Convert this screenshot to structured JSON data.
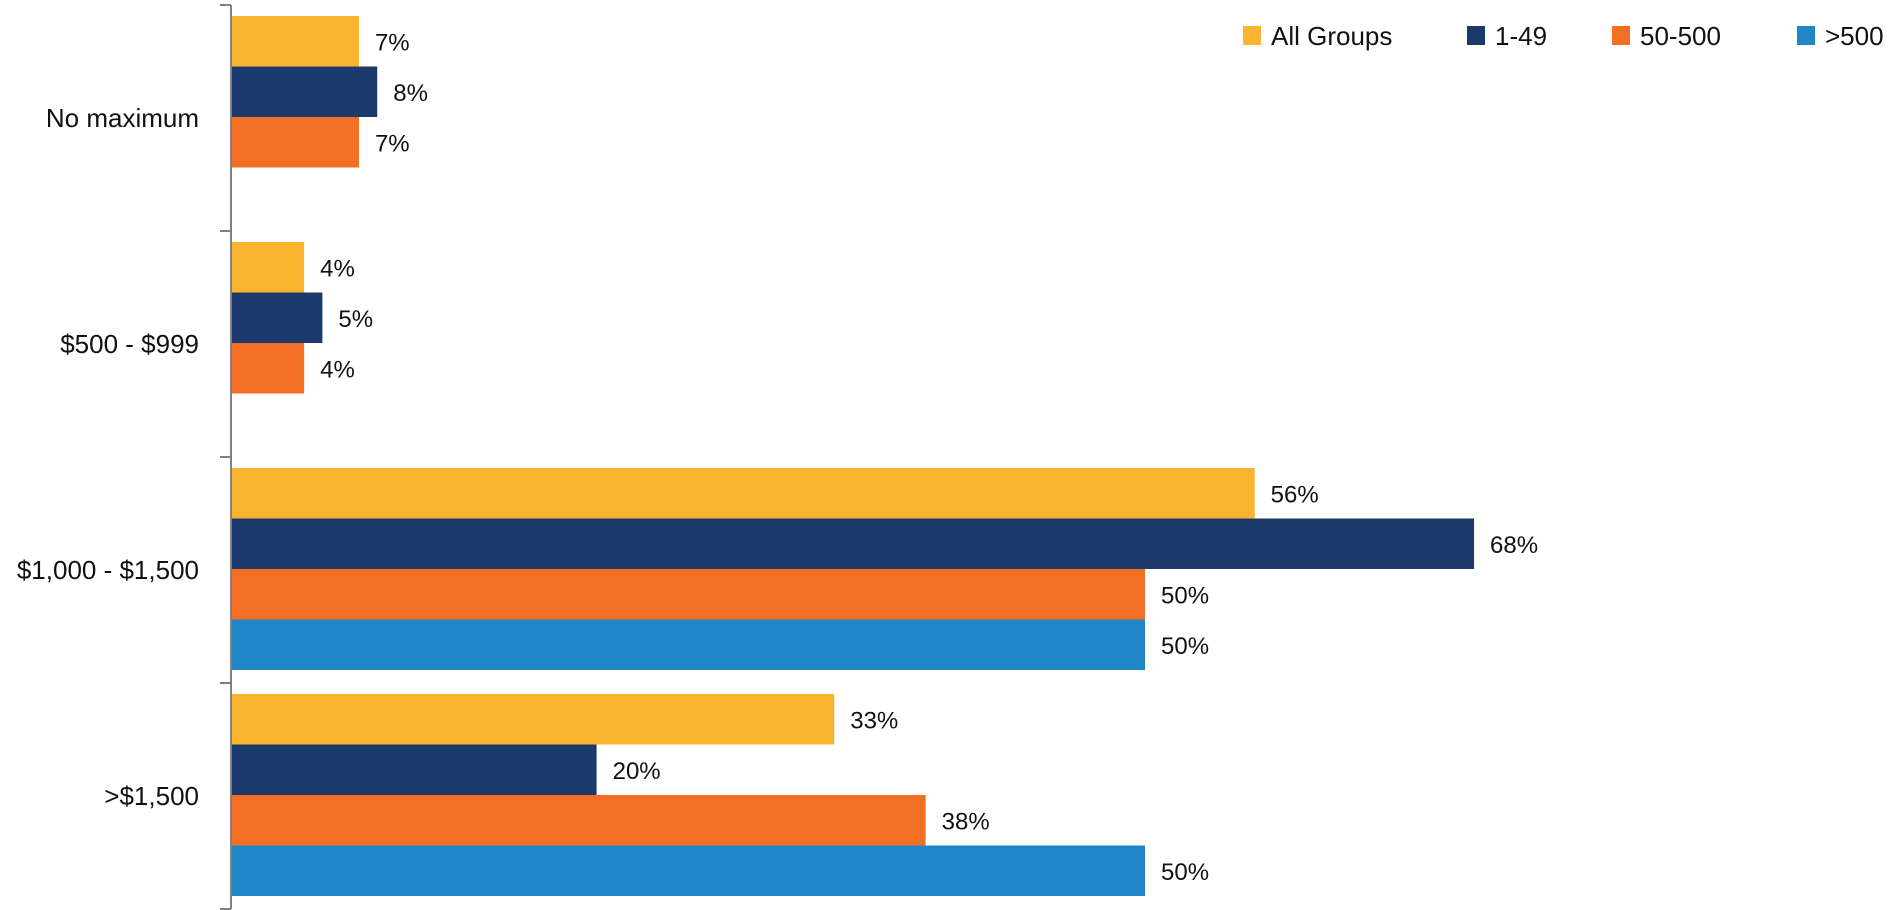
{
  "chart_data": {
    "type": "bar",
    "orientation": "horizontal",
    "categories": [
      "No maximum",
      "$500 - $999",
      "$1,000 - $1,500",
      ">$1,500"
    ],
    "series": [
      {
        "name": "All Groups",
        "color": "#FBB430",
        "values": [
          7,
          4,
          56,
          33
        ],
        "labels": [
          "7%",
          "4%",
          "56%",
          "33%"
        ]
      },
      {
        "name": "1-49",
        "color": "#1B3A6B",
        "values": [
          8,
          5,
          68,
          20
        ],
        "labels": [
          "8%",
          "5%",
          "68%",
          "20%"
        ]
      },
      {
        "name": "50-500",
        "color": "#F36F24",
        "values": [
          7,
          4,
          50,
          38
        ],
        "labels": [
          "7%",
          "4%",
          "50%",
          "38%"
        ]
      },
      {
        "name": ">500",
        "color": "#2186C8",
        "values": [
          null,
          null,
          50,
          50
        ],
        "labels": [
          "",
          "",
          "50%",
          "50%"
        ]
      }
    ],
    "title": "",
    "xlabel": "",
    "ylabel": "",
    "xlim": [
      0,
      100
    ],
    "value_format": "percent",
    "grid": false,
    "legend_position": "top-right"
  }
}
